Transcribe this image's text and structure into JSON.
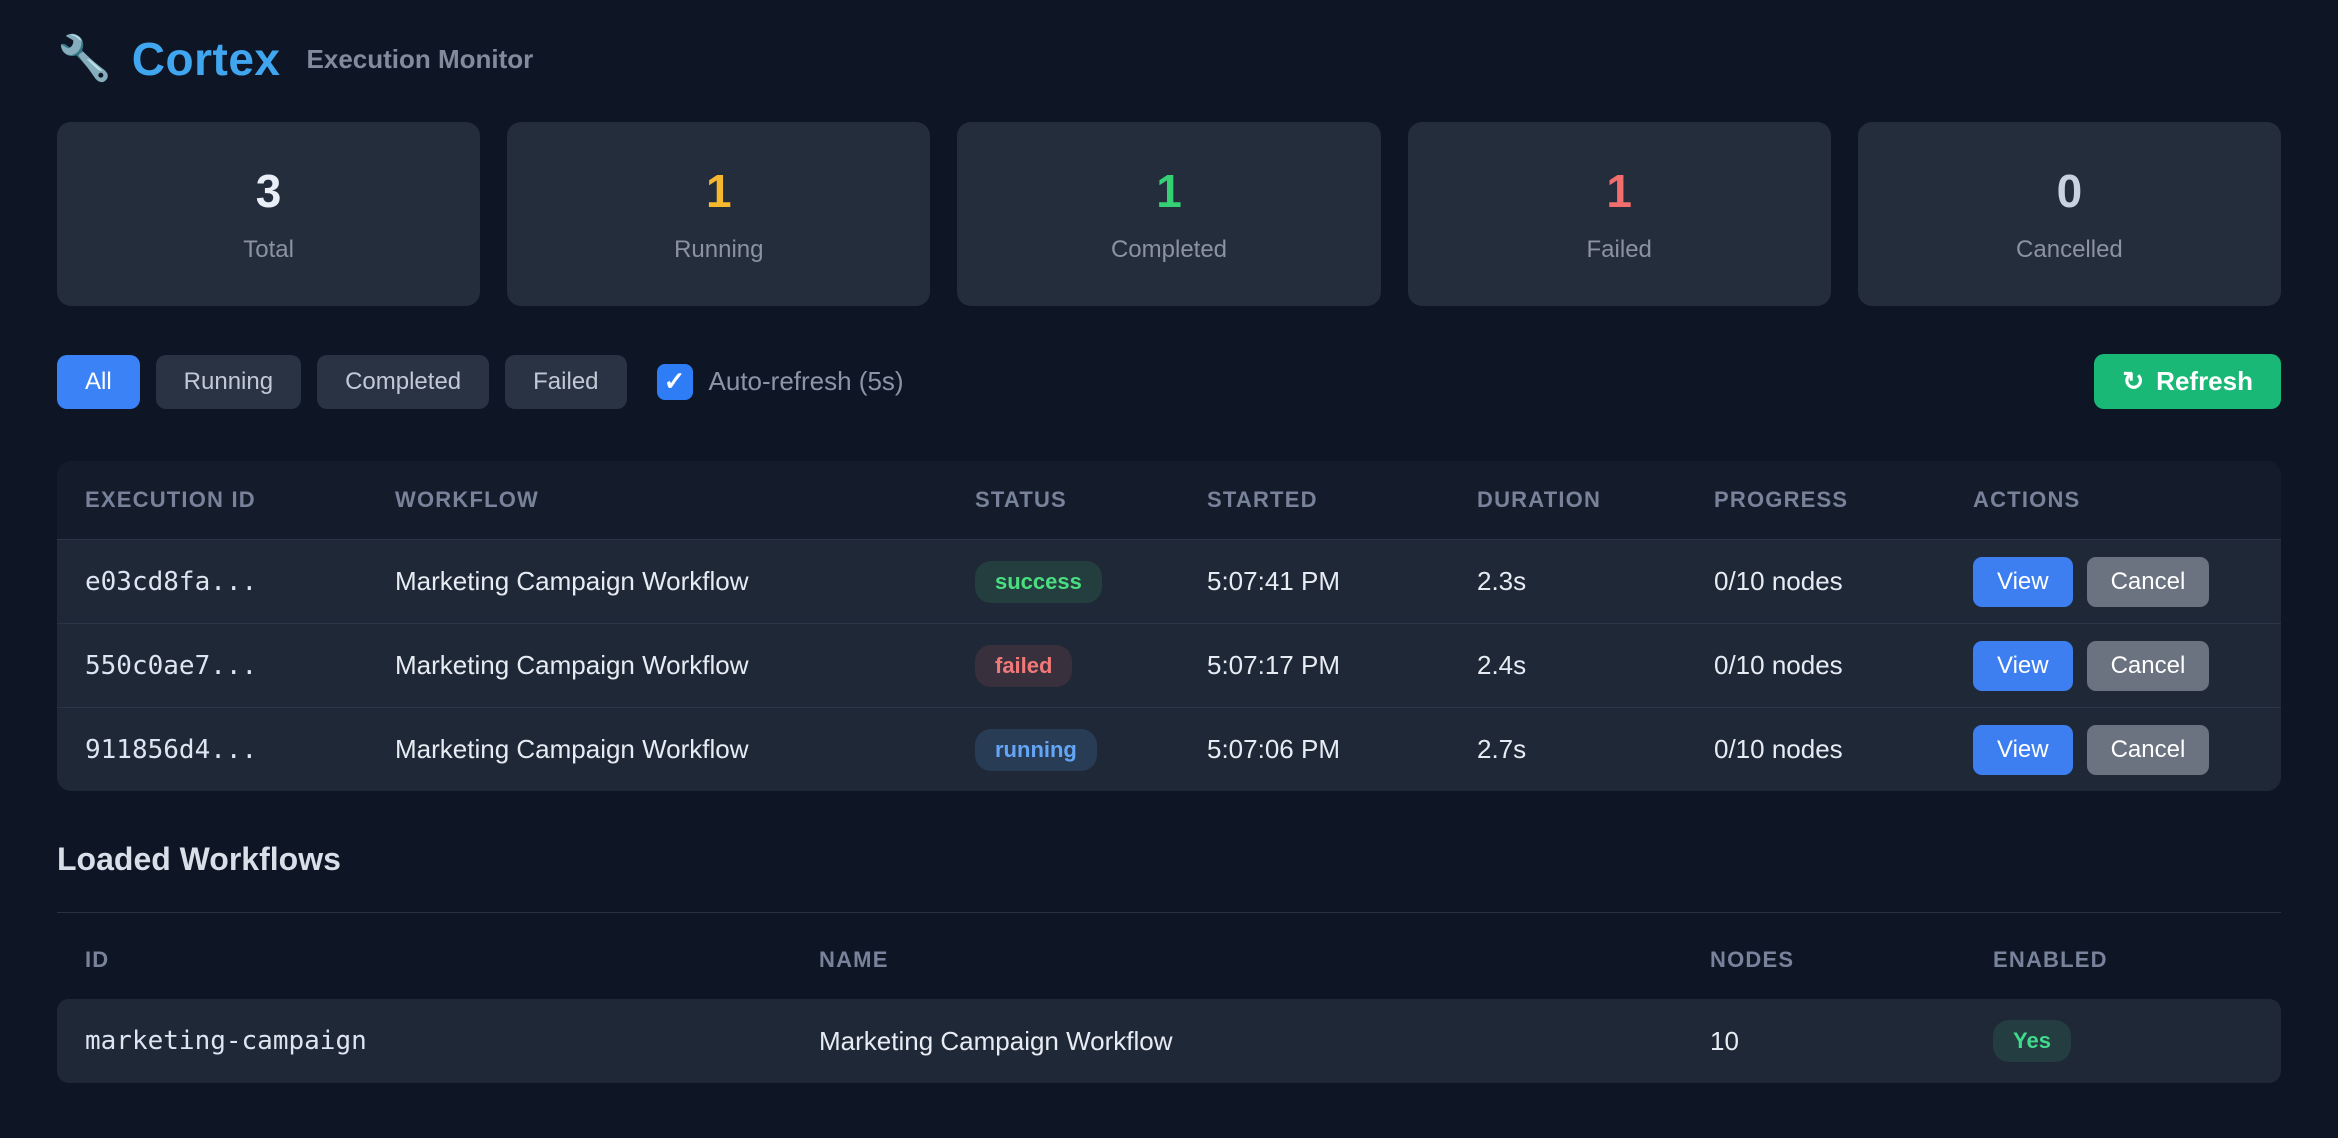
{
  "app": {
    "icon": "🔧",
    "title": "Cortex",
    "subtitle": "Execution Monitor"
  },
  "stats": [
    {
      "value": "3",
      "label": "Total"
    },
    {
      "value": "1",
      "label": "Running"
    },
    {
      "value": "1",
      "label": "Completed"
    },
    {
      "value": "1",
      "label": "Failed"
    },
    {
      "value": "0",
      "label": "Cancelled"
    }
  ],
  "stat_colors": {
    "total": "#e9eef7",
    "running": "#f5b82e",
    "completed": "#35d073",
    "failed": "#f26d6d",
    "cancelled": "#c9d3e0"
  },
  "filters": {
    "buttons": [
      {
        "label": "All",
        "active": true
      },
      {
        "label": "Running",
        "active": false
      },
      {
        "label": "Completed",
        "active": false
      },
      {
        "label": "Failed",
        "active": false
      }
    ],
    "auto_refresh": {
      "checked": true,
      "check_glyph": "✓",
      "label": "Auto-refresh (5s)"
    },
    "refresh": {
      "icon": "↻",
      "label": "Refresh",
      "color": "#19b877"
    }
  },
  "executions": {
    "columns": [
      "EXECUTION ID",
      "WORKFLOW",
      "STATUS",
      "STARTED",
      "DURATION",
      "PROGRESS",
      "ACTIONS"
    ],
    "rows": [
      {
        "id": "e03cd8fa...",
        "workflow": "Marketing Campaign Workflow",
        "status": "success",
        "started": "5:07:41 PM",
        "duration": "2.3s",
        "progress": "0/10 nodes"
      },
      {
        "id": "550c0ae7...",
        "workflow": "Marketing Campaign Workflow",
        "status": "failed",
        "started": "5:07:17 PM",
        "duration": "2.4s",
        "progress": "0/10 nodes"
      },
      {
        "id": "911856d4...",
        "workflow": "Marketing Campaign Workflow",
        "status": "running",
        "started": "5:07:06 PM",
        "duration": "2.7s",
        "progress": "0/10 nodes"
      }
    ],
    "row_actions": {
      "view": "View",
      "cancel": "Cancel"
    }
  },
  "workflows": {
    "heading": "Loaded Workflows",
    "columns": [
      "ID",
      "NAME",
      "NODES",
      "ENABLED"
    ],
    "rows": [
      {
        "id": "marketing-campaign",
        "name": "Marketing Campaign Workflow",
        "nodes": "10",
        "enabled": "Yes"
      }
    ]
  },
  "status_colors": {
    "success": "#4ade80",
    "failed": "#f07878",
    "running": "#64a5f6",
    "accent_blue": "#3d7ef0",
    "accent_green": "#19b877",
    "title_blue": "#41a6f0"
  }
}
